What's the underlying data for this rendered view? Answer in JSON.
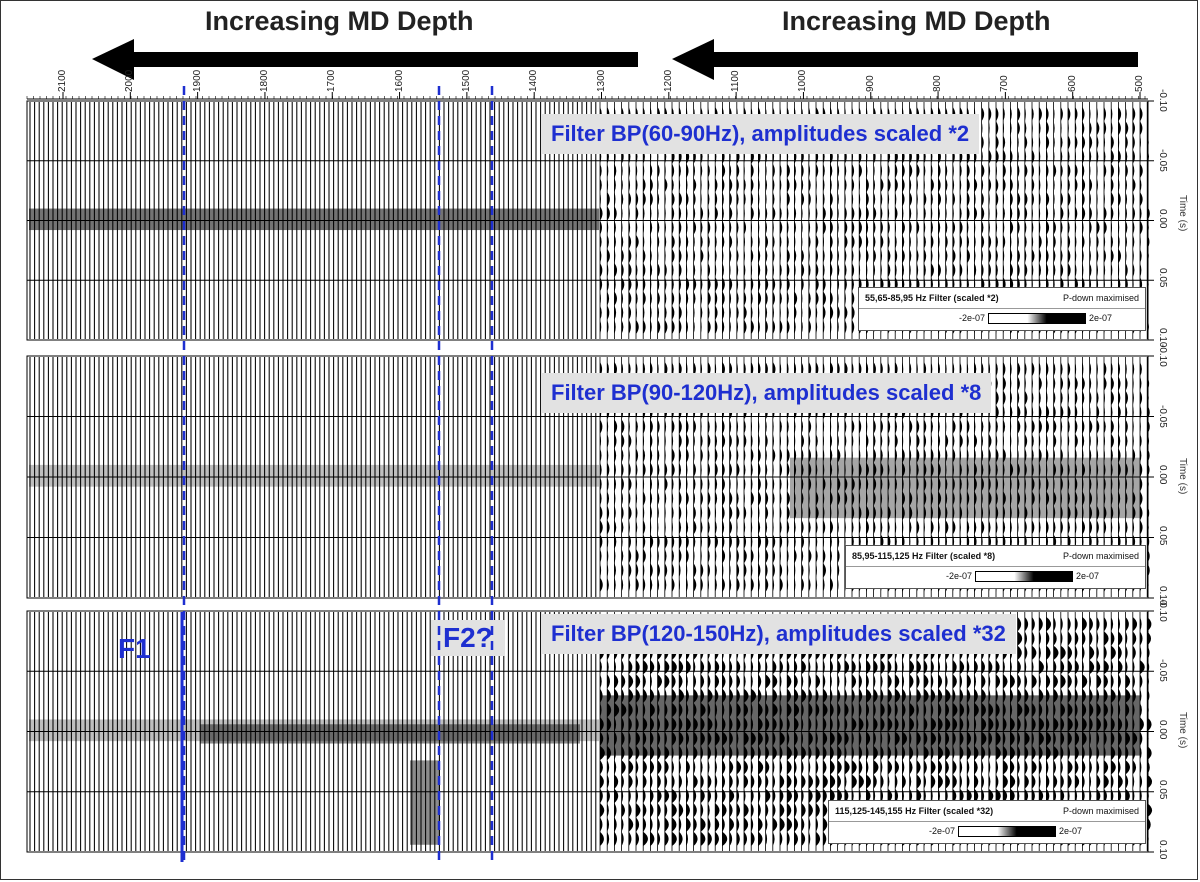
{
  "headers": {
    "left": "Increasing MD Depth",
    "right": "Increasing MD Depth"
  },
  "x_axis": {
    "ticks": [
      "2100",
      "2000",
      "1900",
      "1800",
      "1700",
      "1600",
      "1500",
      "1400",
      "1300",
      "1200",
      "1100",
      "1000",
      "900",
      "800",
      "700",
      "600",
      "500"
    ]
  },
  "panels": [
    {
      "caption": "Filter BP(60-90Hz), amplitudes scaled *2",
      "legend_title": "55,65-85,95 Hz Filter (scaled *2)",
      "legend_mode": "P-down maximised",
      "legend_min": "-2e-07",
      "legend_max": "2e-07",
      "y_ticks": [
        "-0.10",
        "-0.05",
        "0.00",
        "0.05",
        "0.10"
      ],
      "y_label": "Time (s)"
    },
    {
      "caption": "Filter BP(90-120Hz), amplitudes scaled *8",
      "legend_title": "85,95-115,125 Hz Filter (scaled *8)",
      "legend_mode": "P-down maximised",
      "legend_min": "-2e-07",
      "legend_max": "2e-07",
      "y_ticks": [
        "-0.10",
        "-0.05",
        "0.00",
        "0.05",
        "0.10"
      ],
      "y_label": "Time (s)"
    },
    {
      "caption": "Filter BP(120-150Hz), amplitudes scaled *32",
      "legend_title": "115,125-145,155 Hz Filter (scaled *32)",
      "legend_mode": "P-down maximised",
      "legend_min": "-2e-07",
      "legend_max": "2e-07",
      "y_ticks": [
        "-0.10",
        "-0.05",
        "0.00",
        "0.05",
        "0.10"
      ],
      "y_label": "Time (s)"
    }
  ],
  "fault_labels": {
    "f1": "F1",
    "f2": "F2?"
  },
  "colors": {
    "annotation_blue": "#1e2fd0",
    "caption_bg": "#e2e2e2"
  }
}
